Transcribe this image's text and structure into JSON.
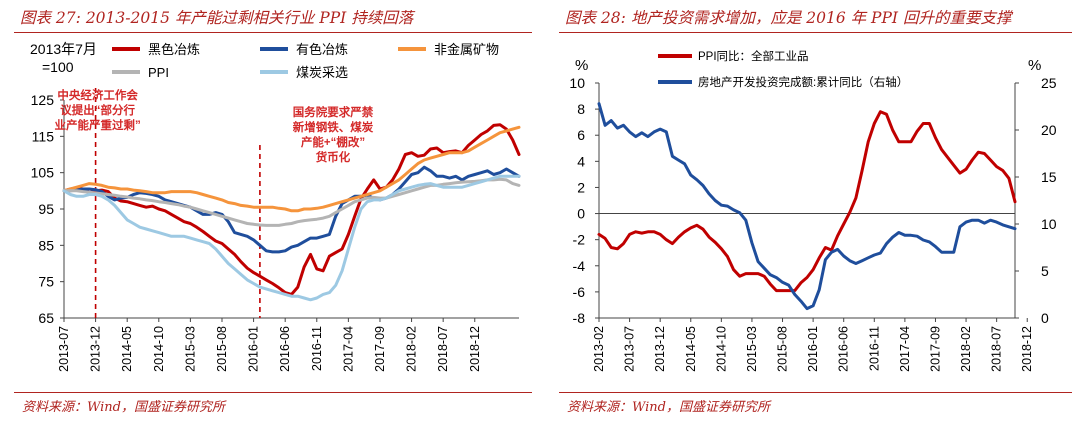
{
  "charts": [
    {
      "figure_label": "图表 27:",
      "title": "2013-2015 年产能过剩相关行业 PPI 持续回落",
      "source": "资料来源：Wind，国盛证券研究所"
    },
    {
      "figure_label": "图表 28:",
      "title": "地产投资需求增加，应是 2016 年 PPI 回升的重要支撑",
      "source": "资料来源：Wind，国盛证券研究所"
    }
  ],
  "chart_data": [
    {
      "type": "line",
      "index_base_line1": "2013年7月",
      "index_base_line2": "=100",
      "y_ticks": [
        65,
        75,
        85,
        95,
        105,
        115,
        125
      ],
      "ylim": [
        65,
        125
      ],
      "x_ticks": [
        "2013-07",
        "2013-12",
        "2014-05",
        "2014-10",
        "2015-03",
        "2015-08",
        "2016-01",
        "2016-06",
        "2016-11",
        "2017-04",
        "2017-09",
        "2018-02",
        "2018-07",
        "2018-12"
      ],
      "xlabel": "",
      "ylabel": "",
      "grid": false,
      "legend_position": "top",
      "annotations": [
        {
          "text": [
            "中央经济工作会",
            "议提出“部分行",
            "业产能严重过剩”"
          ],
          "x": "2013-12",
          "color": "#d42a2a"
        },
        {
          "text": [
            "国务院要求严禁",
            "新增钢铁、煤炭",
            "产能+“棚改”",
            "货币化"
          ],
          "x": "2016-02",
          "color": "#d42a2a"
        }
      ],
      "series": [
        {
          "name": "黑色冶炼",
          "color": "#c00000",
          "width": 3,
          "values": [
            100,
            100.5,
            100.8,
            100.5,
            99.5,
            100,
            100.2,
            99.8,
            98,
            97.2,
            97,
            96.5,
            96,
            95.5,
            95.8,
            95,
            94.5,
            93.5,
            92.5,
            91.5,
            91,
            90,
            88.8,
            87.5,
            86.2,
            85.5,
            84,
            82.5,
            80.5,
            78.7,
            77.5,
            76.5,
            75.5,
            74.5,
            73.3,
            72,
            71.5,
            73.5,
            79,
            82.5,
            78.5,
            78,
            82,
            83,
            84,
            88,
            93,
            97.8,
            100.5,
            103,
            100.5,
            101,
            103,
            106,
            110,
            110.5,
            109.5,
            109.8,
            111.5,
            111.8,
            110.5,
            110.8,
            111,
            110.5,
            112.5,
            114,
            115.5,
            116.5,
            118,
            118.2,
            117,
            114,
            110
          ]
        },
        {
          "name": "有色冶炼",
          "color": "#1f4e9c",
          "width": 3,
          "values": [
            100,
            100,
            100.2,
            100.5,
            100.5,
            100.3,
            99.8,
            98.5,
            97.5,
            98,
            98.2,
            99,
            99.5,
            99.3,
            99,
            98.5,
            97.5,
            97,
            96.5,
            96,
            95.5,
            94.5,
            93.5,
            93.5,
            94,
            93.5,
            91.5,
            88.5,
            88,
            87.5,
            86.5,
            85,
            83.5,
            83.2,
            83.2,
            83.5,
            84.5,
            85,
            86,
            87,
            87,
            87.5,
            88,
            93,
            96.5,
            97.5,
            98.5,
            98.5,
            98.8,
            98,
            97.5,
            98,
            99,
            100.5,
            102.5,
            104.5,
            105,
            106.5,
            105.5,
            104,
            104,
            103.5,
            104,
            103,
            104,
            104.5,
            105,
            105.5,
            104.5,
            105,
            106,
            105,
            104
          ]
        },
        {
          "name": "非金属矿物",
          "color": "#f5943c",
          "width": 3,
          "values": [
            100,
            100.5,
            101,
            101.5,
            102,
            101.8,
            101.5,
            101,
            100.8,
            100.5,
            100.5,
            100.2,
            100,
            99.8,
            99.5,
            99.5,
            99.5,
            99.8,
            99.8,
            99.8,
            99.8,
            99.5,
            99,
            98.5,
            98,
            97.5,
            96.8,
            96.5,
            96,
            95.8,
            95.5,
            95.5,
            95.5,
            95.5,
            95.2,
            95,
            94.5,
            94.5,
            95,
            95,
            95.2,
            95.5,
            96,
            96.5,
            97,
            97.5,
            98,
            98.5,
            99,
            99.5,
            100,
            101,
            102,
            103,
            104.5,
            106,
            107.5,
            108.5,
            109,
            109.5,
            110,
            110.5,
            110.5,
            110.5,
            111,
            112,
            113,
            114,
            115,
            116,
            116.5,
            117,
            117.5
          ]
        },
        {
          "name": "PPI",
          "color": "#b4b4b4",
          "width": 3,
          "values": [
            100,
            100,
            100,
            99.8,
            99.6,
            99.4,
            99.2,
            99,
            98.8,
            98.5,
            98.3,
            98,
            97.8,
            97.5,
            97.3,
            97,
            96.8,
            96.5,
            96.2,
            95.8,
            95.5,
            95,
            94.5,
            94,
            93.5,
            93,
            92.5,
            92,
            91.5,
            91,
            90.8,
            90.6,
            90.5,
            90.5,
            90.5,
            90.8,
            91,
            91.5,
            91.8,
            92,
            92.2,
            92.5,
            93,
            94,
            95,
            96,
            97,
            97.5,
            98,
            98.2,
            98,
            98,
            98.5,
            99,
            99.5,
            100,
            100.5,
            101,
            101.5,
            101.5,
            101.8,
            102,
            102.2,
            102.4,
            102.5,
            102.6,
            102.8,
            103,
            103,
            103.2,
            103,
            102,
            101.5
          ]
        },
        {
          "name": "煤炭采选",
          "color": "#9dc9e3",
          "width": 3,
          "values": [
            100,
            99,
            98.5,
            98.5,
            99,
            99,
            98.5,
            97.5,
            96,
            94,
            92,
            91,
            90,
            89.5,
            89,
            88.5,
            88,
            87.5,
            87.5,
            87.5,
            87,
            86.5,
            86,
            85.5,
            84,
            82,
            80,
            78.5,
            77,
            75.5,
            74.5,
            73.5,
            73,
            72.5,
            72,
            71.5,
            71,
            71,
            70.5,
            70,
            70.5,
            71.5,
            72,
            74,
            78,
            84,
            90,
            95,
            97,
            97.5,
            97.5,
            98,
            99,
            100,
            100.5,
            101,
            101.5,
            101.8,
            102,
            101.5,
            101,
            101,
            101,
            101,
            101.5,
            102,
            102.5,
            103,
            103.5,
            104,
            104,
            104,
            104
          ]
        }
      ]
    },
    {
      "type": "line",
      "y_ticks_left": [
        -8,
        -6,
        -4,
        -2,
        0,
        2,
        4,
        6,
        8,
        10
      ],
      "ylim_left": [
        -8,
        10
      ],
      "ylabel_left": "%",
      "y_ticks_right": [
        0,
        5,
        10,
        15,
        20,
        25
      ],
      "ylim_right": [
        0,
        25
      ],
      "ylabel_right": "%",
      "x_ticks": [
        "2013-02",
        "2013-07",
        "2013-12",
        "2014-05",
        "2014-10",
        "2015-03",
        "2015-08",
        "2016-01",
        "2016-06",
        "2016-11",
        "2017-04",
        "2017-09",
        "2018-02",
        "2018-07",
        "2018-12"
      ],
      "grid": false,
      "legend_position": "top-left",
      "series": [
        {
          "name": "PPI同比：全部工业品",
          "axis": "left",
          "color": "#c00000",
          "width": 3,
          "values": [
            -1.6,
            -1.9,
            -2.6,
            -2.7,
            -2.3,
            -1.6,
            -1.4,
            -1.5,
            -1.4,
            -1.4,
            -1.6,
            -2,
            -2.3,
            -1.8,
            -1.4,
            -1.1,
            -0.9,
            -1.2,
            -1.8,
            -2.2,
            -2.7,
            -3.3,
            -4.3,
            -4.8,
            -4.6,
            -4.6,
            -4.6,
            -4.8,
            -5.4,
            -5.9,
            -5.9,
            -5.9,
            -5.9,
            -5.3,
            -4.9,
            -4.3,
            -3.4,
            -2.6,
            -2.8,
            -1.7,
            -0.8,
            0.1,
            1.2,
            3.3,
            5.5,
            6.9,
            7.8,
            7.6,
            6.4,
            5.5,
            5.5,
            5.5,
            6.3,
            6.9,
            6.9,
            5.8,
            4.9,
            4.3,
            3.7,
            3.1,
            3.4,
            4.1,
            4.7,
            4.6,
            4.1,
            3.6,
            3.3,
            2.7,
            0.9
          ]
        },
        {
          "name": "房地产开发投资完成额:累计同比（右轴）",
          "axis": "right",
          "color": "#1f4e9c",
          "width": 3,
          "values": [
            22.8,
            20.5,
            21,
            20.2,
            20.5,
            19.8,
            19.3,
            19.7,
            19.3,
            19.8,
            20.1,
            19.8,
            17.2,
            16.8,
            16.4,
            15.2,
            14.7,
            14.1,
            13.2,
            12.5,
            12,
            11.9,
            11.5,
            11.2,
            10.4,
            8,
            6,
            5.3,
            4.6,
            4.3,
            3.8,
            3.5,
            2.5,
            1.8,
            1,
            1.3,
            3,
            6.2,
            7,
            7.3,
            6.6,
            6.1,
            5.8,
            6.1,
            6.4,
            6.7,
            6.9,
            7.9,
            8.6,
            9.1,
            8.8,
            8.8,
            8.7,
            8.3,
            8.1,
            7.6,
            7,
            7,
            7,
            9.7,
            10.2,
            10.4,
            10.4,
            10.1,
            10.4,
            10.2,
            9.9,
            9.7,
            9.5
          ]
        }
      ]
    }
  ]
}
